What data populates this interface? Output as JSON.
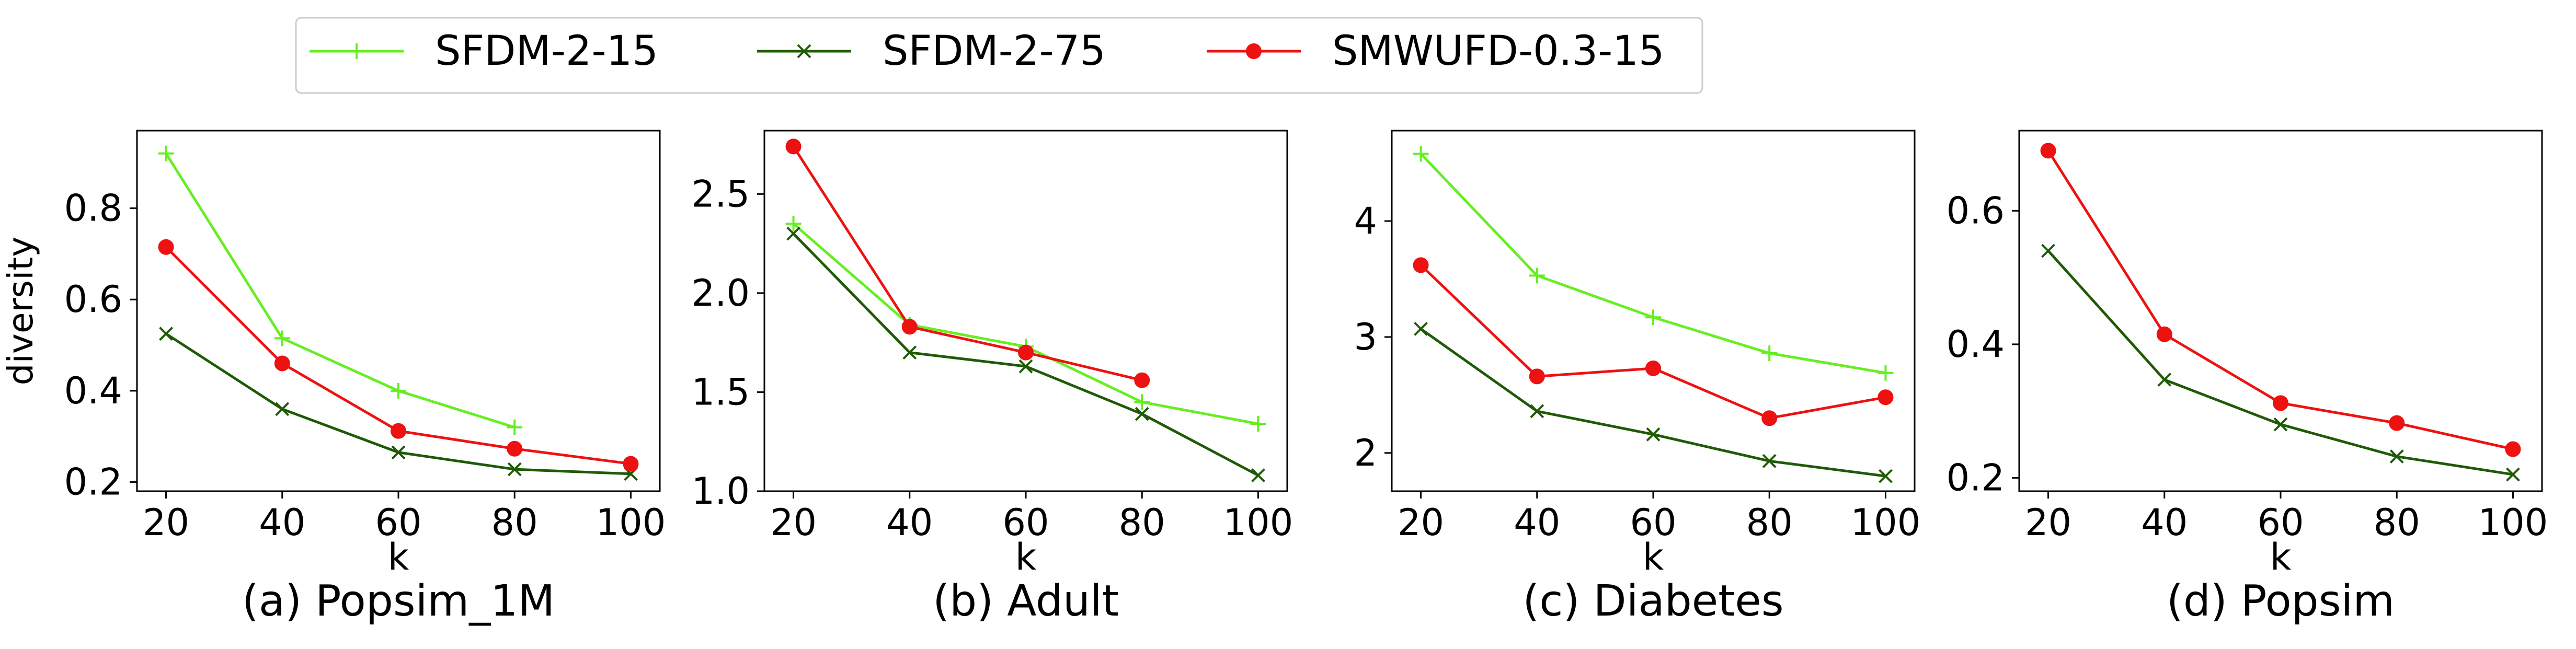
{
  "legend": {
    "entries": [
      {
        "name": "SFDM-2-15",
        "color": "#66ee22",
        "marker": "plus"
      },
      {
        "name": "SFDM-2-75",
        "color": "#1f5a06",
        "marker": "x"
      },
      {
        "name": "SMWUFD-0.3-15",
        "color": "#ee1111",
        "marker": "circle"
      }
    ]
  },
  "chart_data": [
    {
      "type": "line",
      "title": "(a) Popsim_1M",
      "xlabel": "k",
      "ylabel": "diversity",
      "x": [
        20,
        40,
        60,
        80,
        100
      ],
      "xlim": [
        15,
        105
      ],
      "ylim": [
        0.18,
        0.97
      ],
      "yticks": [
        0.2,
        0.4,
        0.6,
        0.8
      ],
      "ytick_labels": [
        "0.2",
        "0.4",
        "0.6",
        "0.8"
      ],
      "xticks": [
        20,
        40,
        60,
        80,
        100
      ],
      "series": [
        {
          "name": "SFDM-2-15",
          "x": [
            20,
            40,
            60,
            80
          ],
          "values": [
            0.92,
            0.515,
            0.4,
            0.32
          ]
        },
        {
          "name": "SFDM-2-75",
          "x": [
            20,
            40,
            60,
            80,
            100
          ],
          "values": [
            0.525,
            0.36,
            0.265,
            0.228,
            0.218
          ]
        },
        {
          "name": "SMWUFD-0.3-15",
          "x": [
            20,
            40,
            60,
            80,
            100
          ],
          "values": [
            0.715,
            0.46,
            0.312,
            0.273,
            0.24
          ]
        }
      ]
    },
    {
      "type": "line",
      "title": "(b) Adult",
      "xlabel": "k",
      "ylabel": "",
      "x": [
        20,
        40,
        60,
        80,
        100
      ],
      "xlim": [
        15,
        105
      ],
      "ylim": [
        1.0,
        2.82
      ],
      "yticks": [
        1.0,
        1.5,
        2.0,
        2.5
      ],
      "ytick_labels": [
        "1.0",
        "1.5",
        "2.0",
        "2.5"
      ],
      "xticks": [
        20,
        40,
        60,
        80,
        100
      ],
      "series": [
        {
          "name": "SFDM-2-15",
          "x": [
            20,
            40,
            60,
            80,
            100
          ],
          "values": [
            2.35,
            1.84,
            1.73,
            1.45,
            1.34
          ]
        },
        {
          "name": "SFDM-2-75",
          "x": [
            20,
            40,
            60,
            80,
            100
          ],
          "values": [
            2.3,
            1.7,
            1.63,
            1.39,
            1.08
          ]
        },
        {
          "name": "SMWUFD-0.3-15",
          "x": [
            20,
            40,
            60,
            80
          ],
          "values": [
            2.74,
            1.83,
            1.7,
            1.56
          ]
        }
      ]
    },
    {
      "type": "line",
      "title": "(c) Diabetes",
      "xlabel": "k",
      "ylabel": "",
      "x": [
        20,
        40,
        60,
        80,
        100
      ],
      "xlim": [
        15,
        105
      ],
      "ylim": [
        1.67,
        4.78
      ],
      "yticks": [
        2,
        3,
        4
      ],
      "ytick_labels": [
        "2",
        "3",
        "4"
      ],
      "xticks": [
        20,
        40,
        60,
        80,
        100
      ],
      "series": [
        {
          "name": "SFDM-2-15",
          "x": [
            20,
            40,
            60,
            80,
            100
          ],
          "values": [
            4.58,
            3.53,
            3.17,
            2.86,
            2.69
          ]
        },
        {
          "name": "SFDM-2-75",
          "x": [
            20,
            40,
            60,
            80,
            100
          ],
          "values": [
            3.07,
            2.36,
            2.16,
            1.93,
            1.8
          ]
        },
        {
          "name": "SMWUFD-0.3-15",
          "x": [
            20,
            40,
            60,
            80,
            100
          ],
          "values": [
            3.62,
            2.66,
            2.73,
            2.3,
            2.48
          ]
        }
      ]
    },
    {
      "type": "line",
      "title": "(d) Popsim",
      "xlabel": "k",
      "ylabel": "",
      "x": [
        20,
        40,
        60,
        80,
        100
      ],
      "xlim": [
        15,
        105
      ],
      "ylim": [
        0.18,
        0.72
      ],
      "yticks": [
        0.2,
        0.4,
        0.6
      ],
      "ytick_labels": [
        "0.2",
        "0.4",
        "0.6"
      ],
      "xticks": [
        20,
        40,
        60,
        80,
        100
      ],
      "series": [
        {
          "name": "SFDM-2-75",
          "x": [
            20,
            40,
            60,
            80,
            100
          ],
          "values": [
            0.54,
            0.347,
            0.28,
            0.232,
            0.205
          ]
        },
        {
          "name": "SMWUFD-0.3-15",
          "x": [
            20,
            40,
            60,
            80,
            100
          ],
          "values": [
            0.69,
            0.415,
            0.312,
            0.282,
            0.243
          ]
        }
      ]
    }
  ]
}
